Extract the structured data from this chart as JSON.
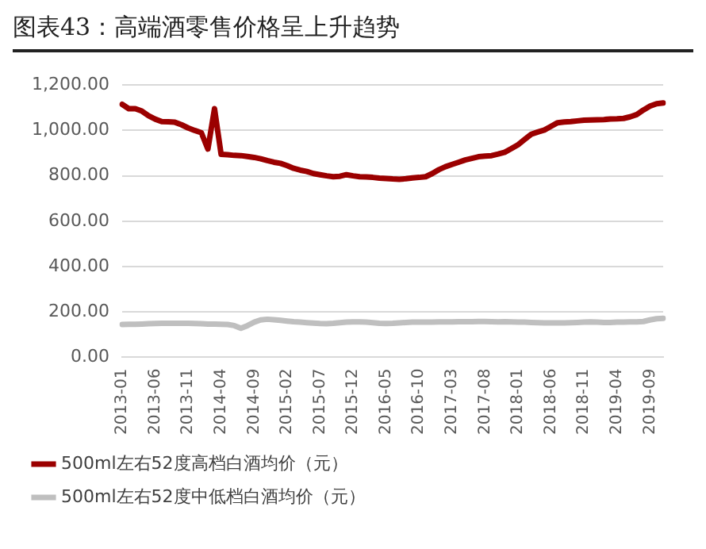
{
  "chart_data": {
    "type": "line",
    "title": "图表43：高端酒零售价格呈上升趋势",
    "categories": [
      "2013-01",
      null,
      null,
      null,
      null,
      "2013-06",
      null,
      null,
      null,
      null,
      "2013-11",
      null,
      null,
      null,
      null,
      "2014-04",
      null,
      null,
      null,
      null,
      "2014-09",
      null,
      null,
      null,
      null,
      "2015-02",
      null,
      null,
      null,
      null,
      "2015-07",
      null,
      null,
      null,
      null,
      "2015-12",
      null,
      null,
      null,
      null,
      "2016-05",
      null,
      null,
      null,
      null,
      "2016-10",
      null,
      null,
      null,
      null,
      "2017-03",
      null,
      null,
      null,
      null,
      "2017-08",
      null,
      null,
      null,
      null,
      "2018-01",
      null,
      null,
      null,
      null,
      "2018-06",
      null,
      null,
      null,
      null,
      "2018-11",
      null,
      null,
      null,
      null,
      "2019-04",
      null,
      null,
      null,
      null,
      "2019-09",
      null,
      null
    ],
    "series": [
      {
        "name": "500ml左右52度高档白酒均价（元）",
        "color": "#9b0000",
        "values": [
          1115,
          1096,
          1096,
          1085,
          1065,
          1050,
          1039,
          1038,
          1036,
          1025,
          1011,
          1000,
          990,
          918,
          1096,
          895,
          893,
          890,
          889,
          885,
          881,
          875,
          867,
          860,
          855,
          845,
          833,
          825,
          819,
          810,
          805,
          800,
          796,
          798,
          805,
          800,
          796,
          795,
          793,
          790,
          788,
          786,
          785,
          787,
          791,
          793,
          796,
          810,
          827,
          840,
          850,
          860,
          870,
          877,
          884,
          887,
          889,
          896,
          904,
          920,
          937,
          960,
          983,
          993,
          1002,
          1018,
          1034,
          1037,
          1039,
          1042,
          1045,
          1046,
          1047,
          1048,
          1050,
          1051,
          1053,
          1060,
          1070,
          1090,
          1107,
          1118,
          1121
        ]
      },
      {
        "name": "500ml左右52度中低档白酒均价（元）",
        "color": "#bfbfbf",
        "values": [
          145,
          146,
          146,
          147,
          148,
          149,
          150,
          150,
          150,
          150,
          150,
          149,
          148,
          147,
          147,
          146,
          145,
          140,
          128,
          140,
          155,
          165,
          168,
          166,
          163,
          160,
          157,
          155,
          153,
          151,
          149,
          148,
          150,
          153,
          155,
          156,
          156,
          155,
          153,
          150,
          149,
          150,
          152,
          154,
          155,
          155,
          155,
          155,
          156,
          156,
          156,
          157,
          157,
          157,
          158,
          158,
          157,
          156,
          157,
          156,
          155,
          155,
          154,
          153,
          152,
          152,
          152,
          152,
          153,
          154,
          155,
          156,
          155,
          154,
          154,
          155,
          155,
          156,
          156,
          158,
          165,
          170,
          172
        ]
      }
    ],
    "ylim": [
      0,
      1200
    ],
    "yticks": [
      {
        "value": 0,
        "label": "0.00"
      },
      {
        "value": 200,
        "label": "200.00"
      },
      {
        "value": 400,
        "label": "400.00"
      },
      {
        "value": 600,
        "label": "600.00"
      },
      {
        "value": 800,
        "label": "800.00"
      },
      {
        "value": 1000,
        "label": "1,000.00"
      },
      {
        "value": 1200,
        "label": "1,200.00"
      }
    ],
    "grid": "y",
    "legend": "bottom",
    "marker": "none",
    "line_style": "solid"
  }
}
